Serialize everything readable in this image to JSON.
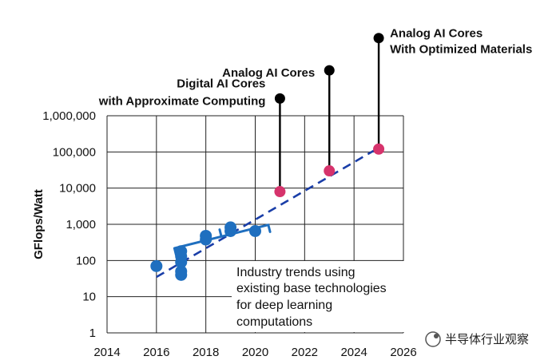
{
  "chart_data": {
    "type": "scatter",
    "y_scale": "log",
    "xlim": [
      2014,
      2026
    ],
    "ylim": [
      1,
      1000000
    ],
    "grid": true,
    "xlabel": "",
    "ylabel": "GFlops/Watt",
    "x_ticks": [
      "2014",
      "2016",
      "2018",
      "2020",
      "2022",
      "2024",
      "2026"
    ],
    "y_ticks": [
      "1",
      "10",
      "100",
      "1,000",
      "10,000",
      "100,000",
      "1,000,000"
    ],
    "series": [
      {
        "color": "#1f6fbf",
        "points": [
          {
            "x": 2016,
            "y": 70
          },
          {
            "x": 2017,
            "y": 40
          },
          {
            "x": 2017,
            "y": 50
          },
          {
            "x": 2017,
            "y": 90
          },
          {
            "x": 2017,
            "y": 130
          },
          {
            "x": 2017,
            "y": 180
          },
          {
            "x": 2018,
            "y": 380
          },
          {
            "x": 2018,
            "y": 480
          },
          {
            "x": 2019,
            "y": 650
          },
          {
            "x": 2019,
            "y": 820
          },
          {
            "x": 2020,
            "y": 650
          }
        ]
      },
      {
        "color": "#d6336c",
        "points": [
          {
            "x": 2021,
            "y": 8000
          },
          {
            "x": 2023,
            "y": 30000
          },
          {
            "x": 2025,
            "y": 120000
          }
        ]
      }
    ],
    "trendline": {
      "from": {
        "x": 2016,
        "y": 35
      },
      "to": {
        "x": 2025,
        "y": 130000
      },
      "color": "#1a3ea8"
    },
    "brace": {
      "x_from": 2016.8,
      "x_to": 2020.6,
      "color": "#1f6fbf"
    },
    "annotations": [
      {
        "lines": [
          "Digital AI Cores",
          "with Approximate Computing"
        ],
        "x": 2021,
        "y": 8000,
        "stem_top": 3000000
      },
      {
        "lines": [
          "Analog AI Cores"
        ],
        "x": 2023,
        "y": 30000,
        "stem_top": 18000000
      },
      {
        "lines": [
          "Analog AI Cores",
          "With Optimized Materials"
        ],
        "x": 2025,
        "y": 120000,
        "stem_top": 140000000
      }
    ],
    "trend_text": [
      "Industry trends using",
      "existing base technologies",
      "for deep learning",
      "computations"
    ]
  },
  "watermark": "半导体行业观察"
}
